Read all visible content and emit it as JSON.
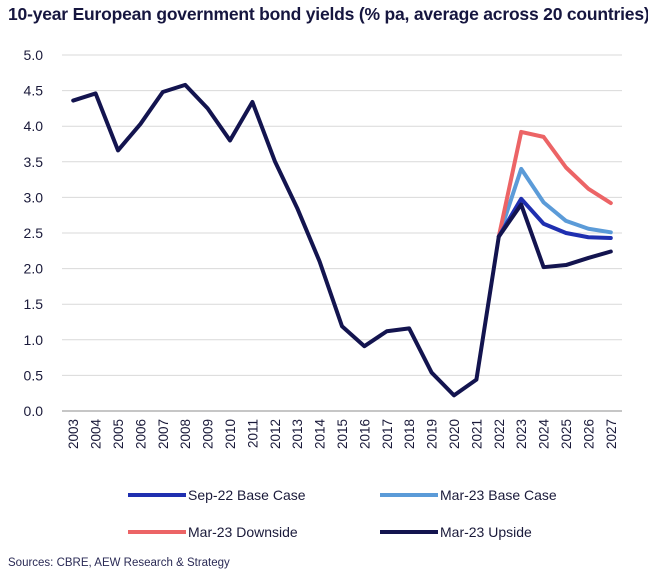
{
  "title": "10-year European government bond yields (% pa, average across 20 countries)",
  "source": "Sources: CBRE, AEW Research & Strategy",
  "chart_data": {
    "type": "line",
    "title": "10-year European government bond yields (% pa, average across 20 countries)",
    "xlabel": "",
    "ylabel": "",
    "ylim": [
      0,
      5
    ],
    "y_ticks": [
      "0.0",
      "0.5",
      "1.0",
      "1.5",
      "2.0",
      "2.5",
      "3.0",
      "3.5",
      "4.0",
      "4.5",
      "5.0"
    ],
    "categories": [
      "2003",
      "2004",
      "2005",
      "2006",
      "2007",
      "2008",
      "2009",
      "2010",
      "2011",
      "2012",
      "2013",
      "2014",
      "2015",
      "2016",
      "2017",
      "2018",
      "2019",
      "2020",
      "2021",
      "2022",
      "2023",
      "2024",
      "2025",
      "2026",
      "2027"
    ],
    "grid": true,
    "legend_position": "bottom",
    "series": [
      {
        "name": "Sep-22 Base Case",
        "color": "#1f2fb0",
        "x": [
          "2022",
          "2023",
          "2024",
          "2025",
          "2026",
          "2027"
        ],
        "values": [
          2.45,
          2.98,
          2.63,
          2.5,
          2.44,
          2.43
        ]
      },
      {
        "name": "Mar-23 Base Case",
        "color": "#5b9bd8",
        "x": [
          "2022",
          "2023",
          "2024",
          "2025",
          "2026",
          "2027"
        ],
        "values": [
          2.45,
          3.4,
          2.93,
          2.67,
          2.56,
          2.51
        ]
      },
      {
        "name": "Mar-23 Downside",
        "color": "#ec6466",
        "x": [
          "2022",
          "2023",
          "2024",
          "2025",
          "2026",
          "2027"
        ],
        "values": [
          2.45,
          3.92,
          3.85,
          3.42,
          3.12,
          2.92
        ]
      },
      {
        "name": "Mar-23 Upside",
        "color": "#13144f",
        "x": [
          "2003",
          "2004",
          "2005",
          "2006",
          "2007",
          "2008",
          "2009",
          "2010",
          "2011",
          "2012",
          "2013",
          "2014",
          "2015",
          "2016",
          "2017",
          "2018",
          "2019",
          "2020",
          "2021",
          "2022",
          "2023",
          "2024",
          "2025",
          "2026",
          "2027"
        ],
        "values": [
          4.36,
          4.46,
          3.66,
          4.03,
          4.48,
          4.58,
          4.25,
          3.8,
          4.34,
          3.51,
          2.85,
          2.1,
          1.19,
          0.91,
          1.12,
          1.16,
          0.54,
          0.22,
          0.44,
          2.45,
          2.9,
          2.02,
          2.05,
          2.15,
          2.24
        ]
      }
    ]
  }
}
